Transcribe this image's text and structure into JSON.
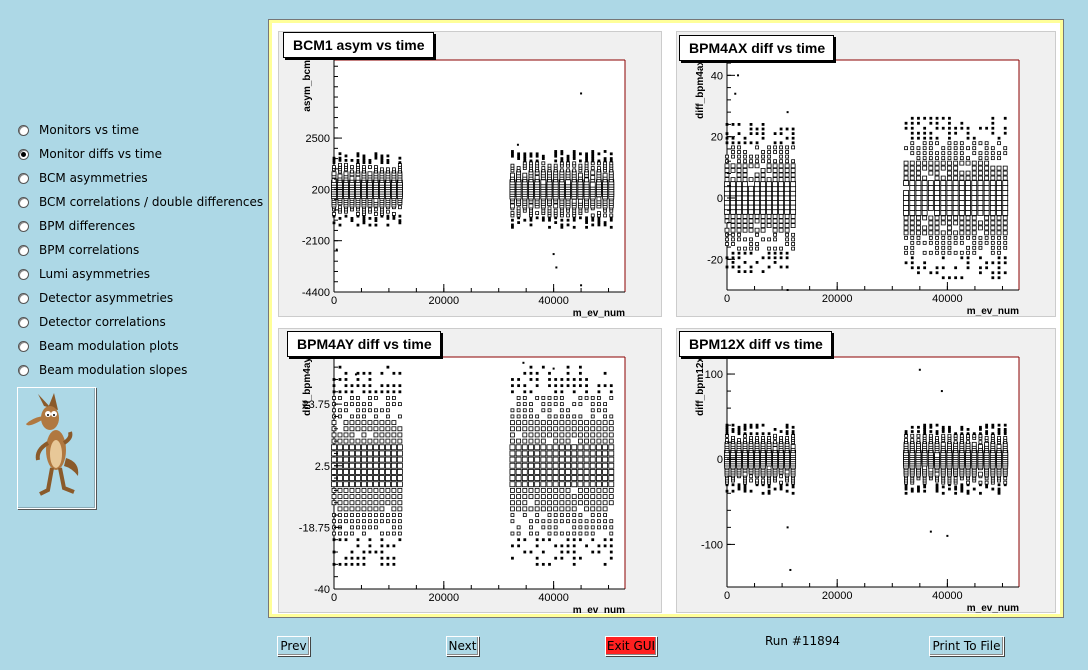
{
  "sidebar": {
    "options": [
      {
        "label": "Monitors vs time",
        "checked": false
      },
      {
        "label": "Monitor diffs vs time",
        "checked": true
      },
      {
        "label": "BCM asymmetries",
        "checked": false
      },
      {
        "label": "BCM correlations / double differences",
        "checked": false
      },
      {
        "label": "BPM differences",
        "checked": false
      },
      {
        "label": "BPM correlations",
        "checked": false
      },
      {
        "label": "Lumi asymmetries",
        "checked": false
      },
      {
        "label": "Detector asymmetries",
        "checked": false
      },
      {
        "label": "Detector correlations",
        "checked": false
      },
      {
        "label": "Beam modulation plots",
        "checked": false
      },
      {
        "label": "Beam modulation slopes",
        "checked": false
      }
    ]
  },
  "pads": [
    {
      "title": "BCM1 asym vs time",
      "ylabel": "asym_bcm",
      "xlabel": "m_ev_num"
    },
    {
      "title": "BPM4AX diff vs time",
      "ylabel": "diff_bpm4ax",
      "xlabel": "m_ev_num"
    },
    {
      "title": "BPM4AY diff vs time",
      "ylabel": "diff_bpm4ay",
      "xlabel": "m_ev_num"
    },
    {
      "title": "BPM12X diff vs time",
      "ylabel": "diff_bpm12x",
      "xlabel": "m_ev_num"
    }
  ],
  "chart_data": [
    {
      "type": "scatter",
      "title": "BCM1 asym vs time",
      "xlabel": "m_ev_num",
      "ylabel": "asym_bcm",
      "xlim": [
        0,
        53000
      ],
      "ylim": [
        -4400,
        6000
      ],
      "yticks": [
        "2500",
        "200",
        "-2100",
        "-4400"
      ],
      "ytick_values": [
        2500,
        200,
        -2100,
        -4400
      ],
      "xticks": [
        "0",
        "20000",
        "40000"
      ],
      "xtick_values": [
        0,
        20000,
        40000
      ],
      "clusters": [
        {
          "x": [
            0,
            12000
          ],
          "center": 200,
          "spread": 1600
        },
        {
          "x": [
            32500,
            50500
          ],
          "center": 200,
          "spread": 1700
        }
      ],
      "outliers": [
        [
          45000,
          4500
        ],
        [
          40000,
          -2700
        ],
        [
          40500,
          -3300
        ],
        [
          45000,
          -4100
        ],
        [
          500,
          -2500
        ],
        [
          33500,
          2200
        ]
      ]
    },
    {
      "type": "scatter",
      "title": "BPM4AX diff vs time",
      "xlabel": "m_ev_num",
      "ylabel": "diff_bpm4ax",
      "xlim": [
        0,
        53000
      ],
      "ylim": [
        -30,
        45
      ],
      "yticks": [
        "40",
        "20",
        "0",
        "-20"
      ],
      "ytick_values": [
        40,
        20,
        0,
        -20
      ],
      "xticks": [
        "0",
        "20000",
        "40000"
      ],
      "xtick_values": [
        0,
        20000,
        40000
      ],
      "clusters": [
        {
          "x": [
            0,
            12000
          ],
          "center": 0,
          "spread": 24
        },
        {
          "x": [
            32500,
            50500
          ],
          "center": 0,
          "spread": 26
        }
      ],
      "outliers": [
        [
          2000,
          40
        ],
        [
          11000,
          28
        ],
        [
          11000,
          -30
        ],
        [
          1500,
          34
        ]
      ]
    },
    {
      "type": "scatter",
      "title": "BPM4AY diff vs time",
      "xlabel": "m_ev_num",
      "ylabel": "diff_bpm4ay",
      "xlim": [
        0,
        53000
      ],
      "ylim": [
        -40,
        40
      ],
      "yticks": [
        "23.75",
        "2.5",
        "-18.75",
        "-40"
      ],
      "ytick_values": [
        23.75,
        2.5,
        -18.75,
        -40
      ],
      "xticks": [
        "0",
        "20000",
        "40000"
      ],
      "xtick_values": [
        0,
        20000,
        40000
      ],
      "clusters": [
        {
          "x": [
            0,
            12000
          ],
          "center": 2.5,
          "spread": 34
        },
        {
          "x": [
            32500,
            50500
          ],
          "center": 2.5,
          "spread": 34
        }
      ],
      "outliers": [
        [
          34500,
          38
        ],
        [
          40000,
          36
        ],
        [
          4000,
          34
        ]
      ]
    },
    {
      "type": "scatter",
      "title": "BPM12X diff vs time",
      "xlabel": "m_ev_num",
      "ylabel": "diff_bpm12x",
      "xlim": [
        0,
        53000
      ],
      "ylim": [
        -150,
        120
      ],
      "yticks": [
        "100",
        "0",
        "-100"
      ],
      "ytick_values": [
        100,
        0,
        -100
      ],
      "xticks": [
        "0",
        "20000",
        "40000"
      ],
      "xtick_values": [
        0,
        20000,
        40000
      ],
      "clusters": [
        {
          "x": [
            0,
            12000
          ],
          "center": 0,
          "spread": 40
        },
        {
          "x": [
            32500,
            50500
          ],
          "center": 0,
          "spread": 40
        }
      ],
      "outliers": [
        [
          11500,
          -130
        ],
        [
          35000,
          105
        ],
        [
          37000,
          -85
        ],
        [
          40000,
          -90
        ],
        [
          11000,
          -80
        ],
        [
          39000,
          80
        ]
      ]
    }
  ],
  "buttons": {
    "prev": "Prev",
    "next": "Next",
    "exit": "Exit GUI",
    "print": "Print To File"
  },
  "run_label": "Run #11894"
}
